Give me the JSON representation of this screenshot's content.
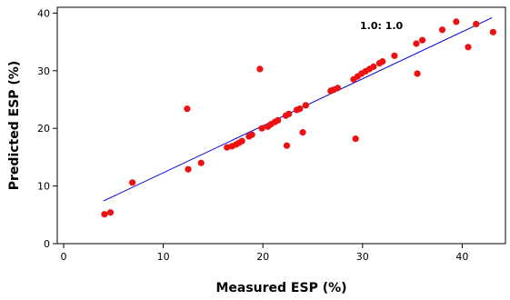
{
  "chart_data": {
    "type": "scatter",
    "title": "",
    "xlabel": "Measured ESP (%)",
    "ylabel": "Predicted ESP (%)",
    "xlim": [
      0,
      45
    ],
    "ylim": [
      0,
      40
    ],
    "xticks": [
      0,
      10,
      20,
      30,
      40
    ],
    "yticks": [
      0,
      10,
      20,
      30,
      40
    ],
    "grid": false,
    "annotation": "1.0: 1.0",
    "colors": {
      "points": "#ee1111",
      "fit_line": "#0000cc",
      "axis": "#000000"
    },
    "fit_line": {
      "x": [
        4.0,
        43.0
      ],
      "y": [
        7.4,
        39.2
      ]
    },
    "series": [
      {
        "x": [
          4.1,
          4.7,
          6.9,
          12.4,
          12.5,
          13.8,
          16.4,
          16.9,
          17.3,
          17.6,
          17.9,
          18.6,
          18.9,
          19.7,
          19.9,
          20.5,
          20.8,
          21.2,
          21.5,
          22.3,
          22.6,
          22.4,
          23.4,
          23.7,
          24.0,
          24.3,
          26.8,
          27.1,
          27.5,
          29.1,
          29.3,
          29.5,
          29.9,
          30.3,
          30.7,
          31.1,
          31.7,
          32.0,
          33.2,
          35.4,
          35.5,
          36.0,
          38.0,
          39.4,
          40.6,
          41.4,
          43.1
        ],
        "y": [
          5.1,
          5.4,
          10.6,
          23.4,
          12.9,
          14.0,
          16.7,
          16.9,
          17.2,
          17.5,
          17.8,
          18.6,
          18.9,
          30.3,
          20.0,
          20.3,
          20.7,
          21.1,
          21.4,
          22.2,
          22.5,
          17.0,
          23.2,
          23.4,
          19.3,
          24.0,
          26.5,
          26.7,
          27.0,
          28.5,
          18.2,
          29.0,
          29.5,
          29.9,
          30.3,
          30.7,
          31.3,
          31.6,
          32.6,
          34.7,
          29.5,
          35.3,
          37.1,
          38.5,
          34.1,
          38.1,
          36.7
        ]
      }
    ]
  }
}
